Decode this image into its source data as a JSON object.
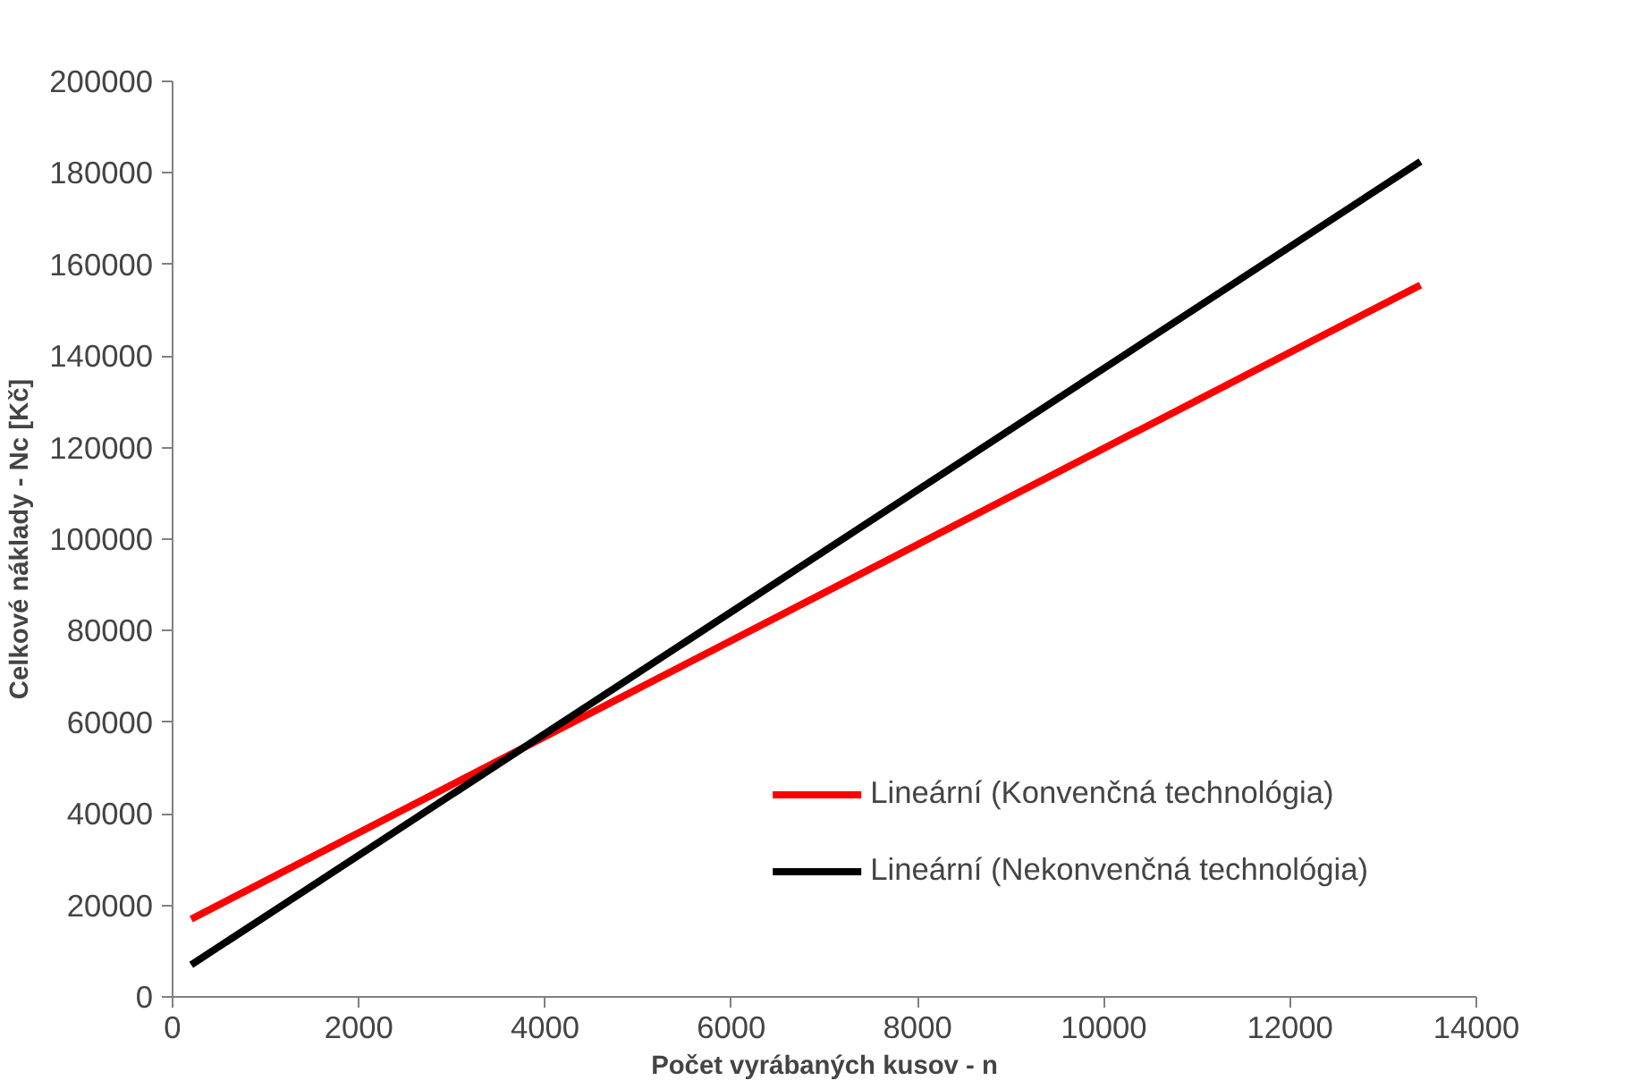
{
  "chart_data": {
    "type": "line",
    "xlabel": "Počet vyrábaných kusov - n",
    "ylabel": "Celkové náklady - Nc [Kč]",
    "x": [
      200,
      13400
    ],
    "series": [
      {
        "name": "Lineární (Konvenčná technológia)",
        "color": "#ff0000",
        "values": [
          17000,
          155500
        ]
      },
      {
        "name": "Lineární (Nekonvenčná technológia)",
        "color": "#000000",
        "values": [
          7000,
          182500
        ]
      }
    ],
    "xlim": [
      0,
      14000
    ],
    "xticks": [
      0,
      2000,
      4000,
      6000,
      8000,
      10000,
      12000,
      14000
    ],
    "ylim": [
      0,
      200000
    ],
    "yticks": [
      0,
      20000,
      40000,
      60000,
      80000,
      100000,
      120000,
      140000,
      160000,
      180000,
      200000
    ],
    "grid": false,
    "legend": "bottom right",
    "marker": "none",
    "line_style": "solid"
  }
}
